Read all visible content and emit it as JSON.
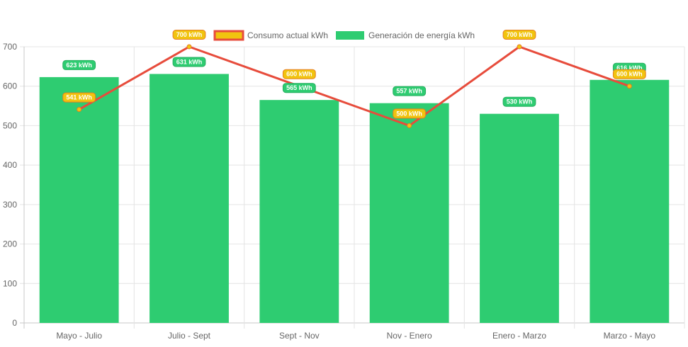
{
  "chart_data": {
    "type": "bar",
    "categories": [
      "Mayo - Julio",
      "Julio - Sept",
      "Sept - Nov",
      "Nov - Enero",
      "Enero - Marzo",
      "Marzo - Mayo"
    ],
    "series": [
      {
        "name": "Consumo actual kWh",
        "type": "line",
        "values": [
          541,
          700,
          600,
          500,
          700,
          600
        ],
        "labels": [
          "541 kWh",
          "700 kWh",
          "600 kWh",
          "500 kWh",
          "700 kWh",
          "600 kWh"
        ],
        "color": "#e74c3c",
        "fill": "#f1c40f",
        "label_color": "#f1c40f",
        "label_border": "#e67e22"
      },
      {
        "name": "Generación de energía kWh",
        "type": "bar",
        "values": [
          623,
          631,
          565,
          557,
          530,
          616
        ],
        "labels": [
          "623 kWh",
          "631 kWh",
          "565 kWh",
          "557 kWh",
          "530 kWh",
          "616 kWh"
        ],
        "color": "#2ecc71",
        "label_color": "#2ecc71"
      }
    ],
    "ylim": [
      0,
      700
    ],
    "yticks": [
      "0",
      "100",
      "200",
      "300",
      "400",
      "500",
      "600",
      "700"
    ],
    "grid": true,
    "legend": "top"
  }
}
